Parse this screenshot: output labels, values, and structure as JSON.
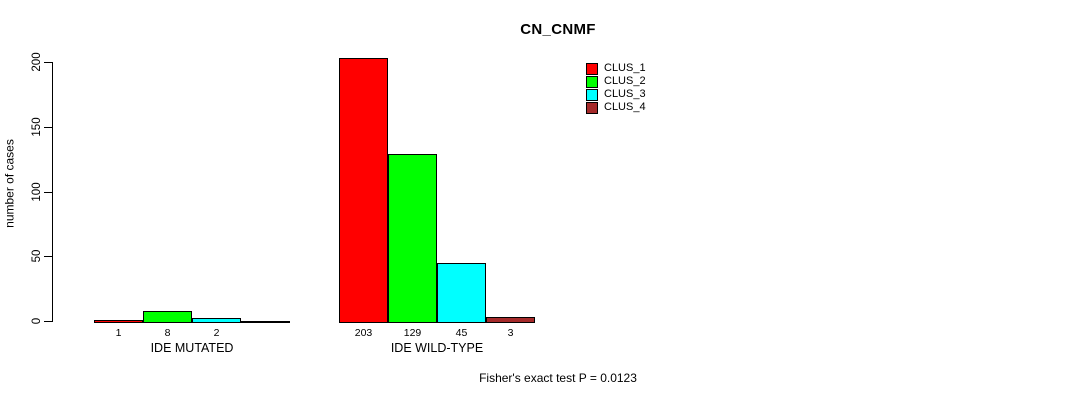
{
  "chart_data": {
    "type": "bar",
    "title": "CN_CNMF",
    "xlabel": "",
    "ylabel": "number of cases",
    "ylim": [
      0,
      200
    ],
    "yticks": [
      0,
      50,
      100,
      150,
      200
    ],
    "grid": false,
    "categories": [
      "IDE MUTATED",
      "IDE WILD-TYPE"
    ],
    "series": [
      {
        "name": "CLUS_1",
        "color": "#ff0000",
        "values": [
          1,
          203
        ]
      },
      {
        "name": "CLUS_2",
        "color": "#00ff00",
        "values": [
          8,
          129
        ]
      },
      {
        "name": "CLUS_3",
        "color": "#00ffff",
        "values": [
          2,
          45
        ]
      },
      {
        "name": "CLUS_4",
        "color": "#a52a2a",
        "values": [
          0,
          3
        ]
      }
    ],
    "bar_value_labels": [
      [
        "1",
        "8",
        "2",
        ""
      ],
      [
        "203",
        "129",
        "45",
        "3"
      ]
    ],
    "legend_entries": [
      "CLUS_1",
      "CLUS_2",
      "CLUS_3",
      "CLUS_4"
    ],
    "legend_position": "top-right",
    "caption": "Fisher's exact test P = 0.0123"
  }
}
